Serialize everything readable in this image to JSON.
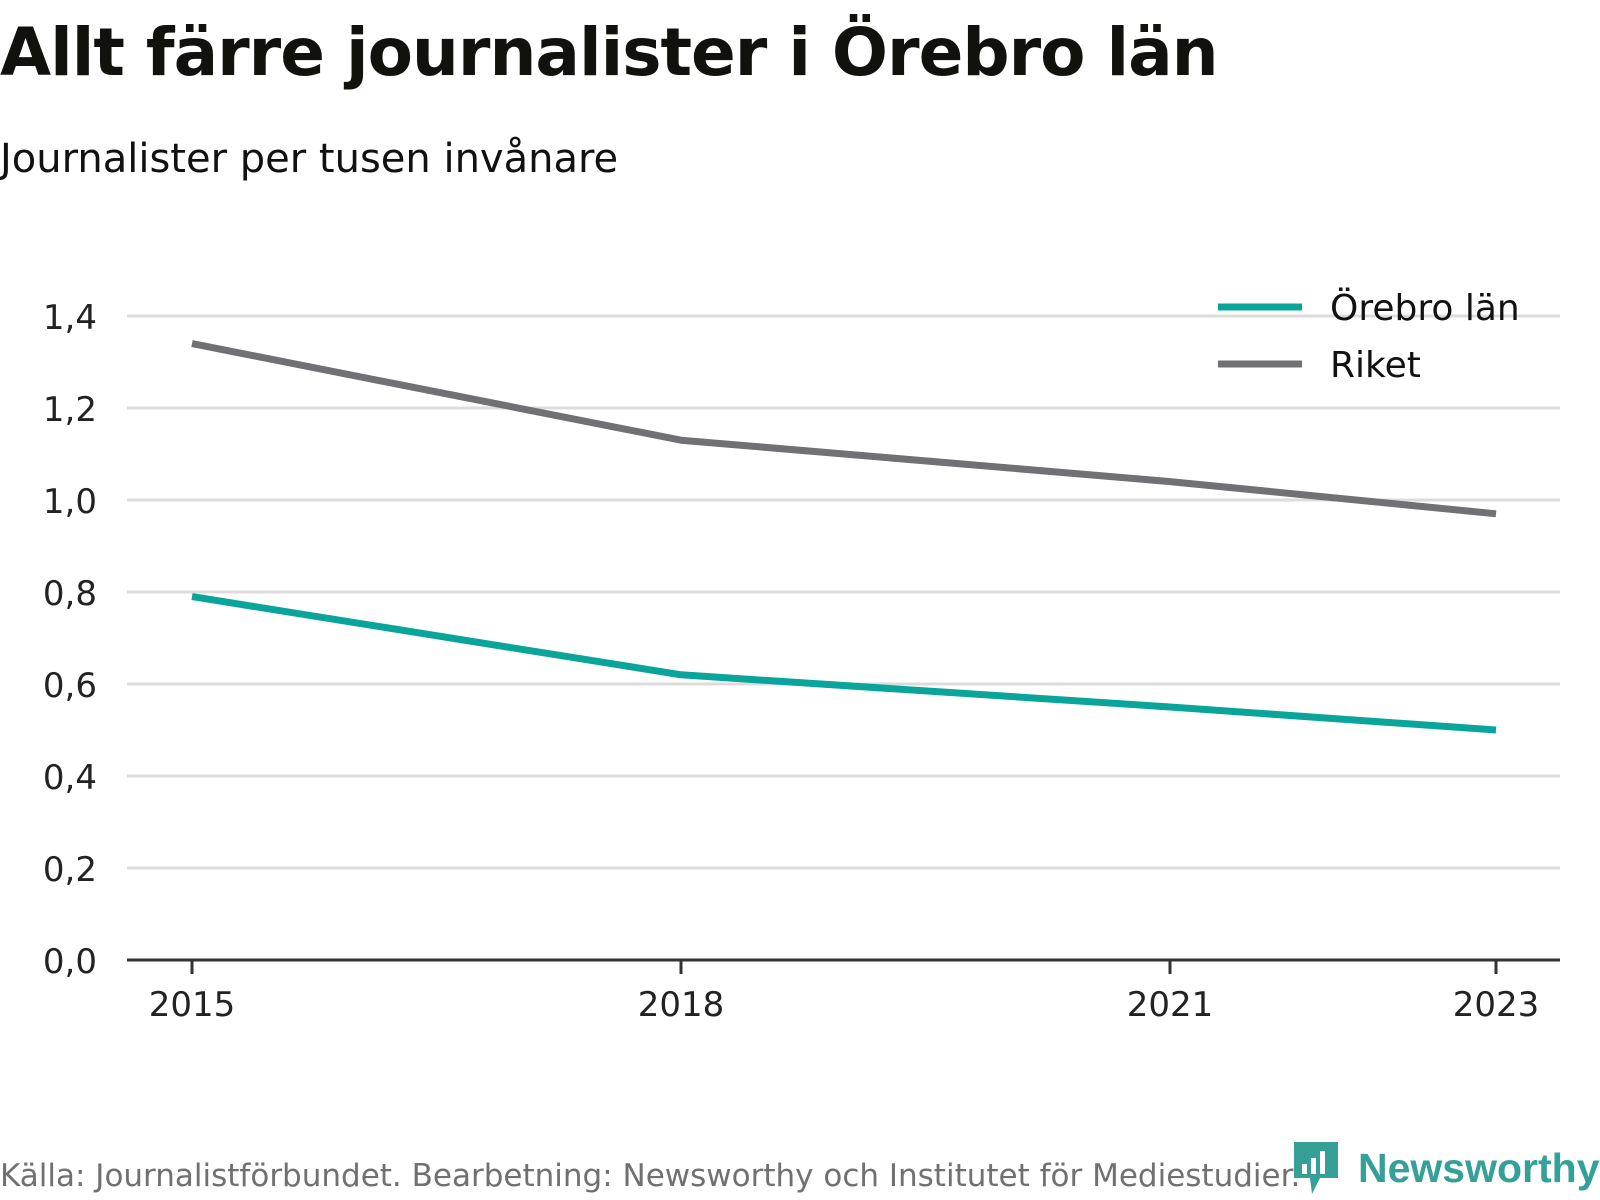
{
  "title": "Allt färre journalister i Örebro län",
  "subtitle": "Journalister per tusen invånare",
  "source": "Källa: Journalistförbundet. Bearbetning: Newsworthy och Institutet för Mediestudier.",
  "logo": {
    "text": "Newsworthy",
    "icon": "newsworthy-speech-bubble-chart-icon",
    "color": "#35a097"
  },
  "colors": {
    "orebro": "#0aa59a",
    "riket": "#707075",
    "grid": "#dcdcdc",
    "axis": "#333333"
  },
  "chart_data": {
    "type": "line",
    "x": [
      2015,
      2018,
      2021,
      2023
    ],
    "xticks": [
      2015,
      2018,
      2021,
      2023
    ],
    "xtick_labels": [
      "2015",
      "2018",
      "2021",
      "2023"
    ],
    "ylim": [
      0,
      1.4
    ],
    "yticks": [
      0,
      0.2,
      0.4,
      0.6,
      0.8,
      1.0,
      1.2,
      1.4
    ],
    "ytick_labels": [
      "0,0",
      "0,2",
      "0,4",
      "0,6",
      "0,8",
      "1,0",
      "1,2",
      "1,4"
    ],
    "xlabel": "",
    "ylabel": "",
    "grid": true,
    "legend_position": "top-right",
    "series": [
      {
        "name": "Örebro län",
        "color": "#0aa59a",
        "values": [
          0.79,
          0.62,
          0.55,
          0.5
        ]
      },
      {
        "name": "Riket",
        "color": "#707075",
        "values": [
          1.34,
          1.13,
          1.04,
          0.97
        ]
      }
    ]
  }
}
